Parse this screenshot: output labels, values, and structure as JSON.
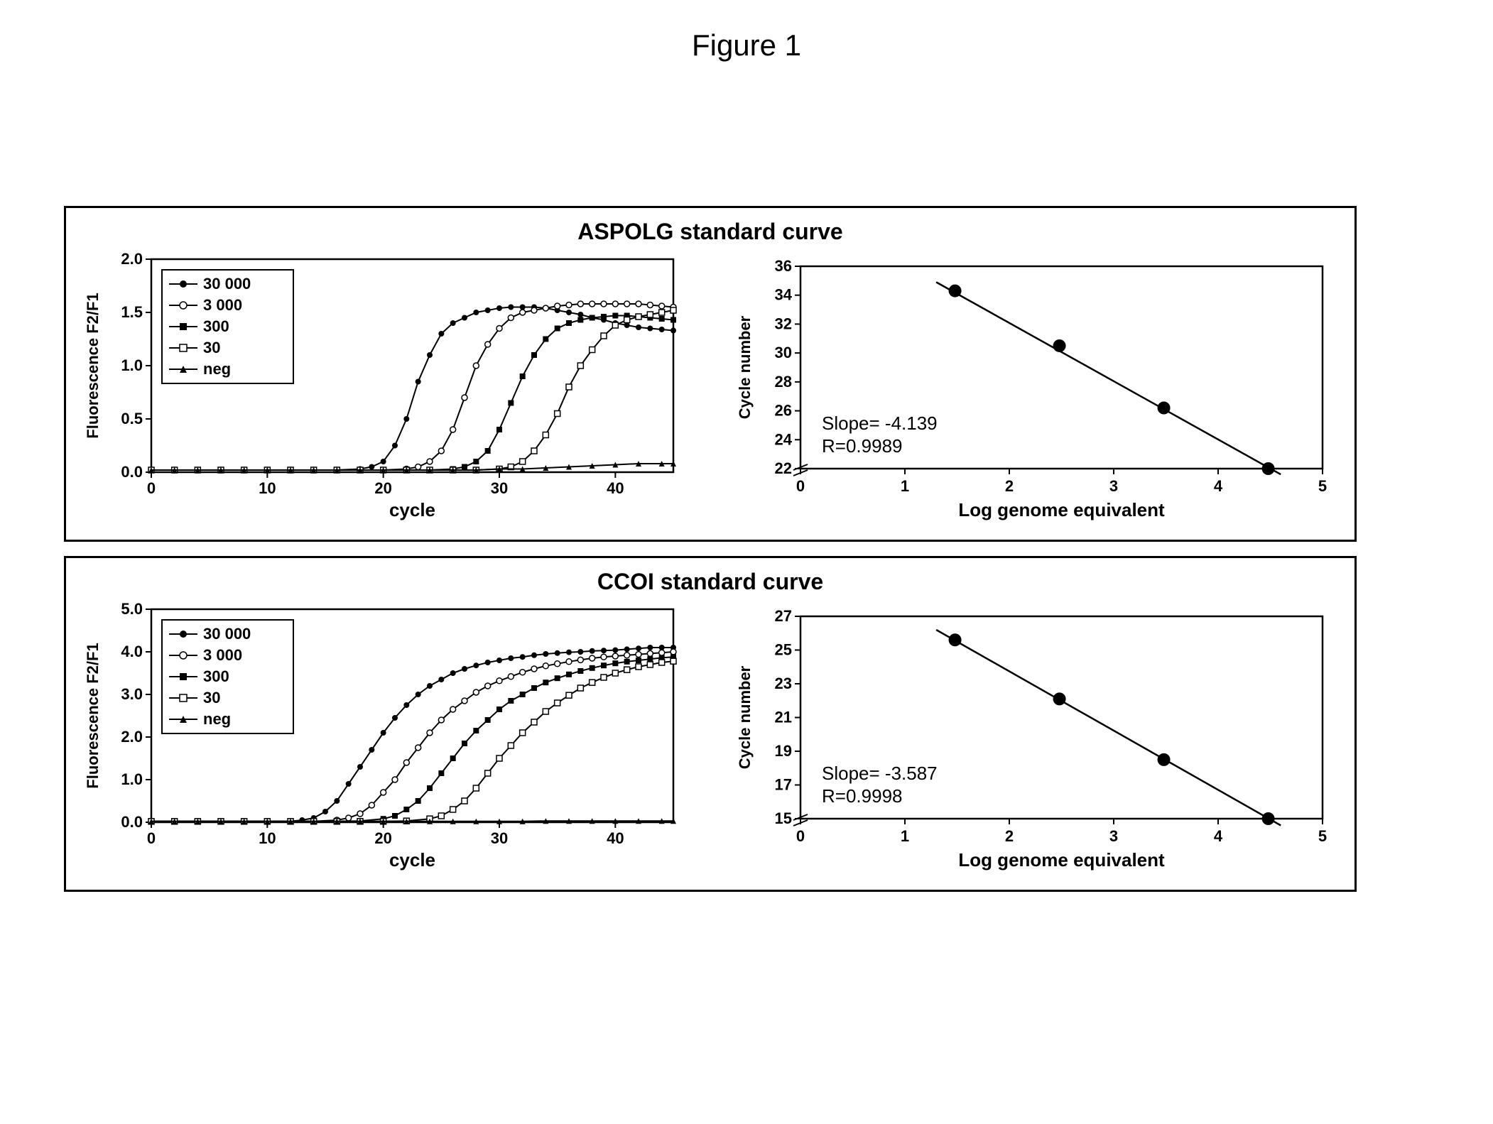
{
  "figure_title": "Figure 1",
  "colors": {
    "text": "#000000",
    "axis": "#000000",
    "panel_border": "#000000",
    "background": "#ffffff",
    "marker_filled": "#000000",
    "marker_hollow_stroke": "#000000",
    "marker_hollow_fill": "#ffffff",
    "line": "#000000"
  },
  "typography": {
    "figure_title_fontsize": 42,
    "panel_title_fontsize": 32,
    "axis_label_fontsize": 26,
    "tick_fontsize": 22,
    "legend_fontsize": 22,
    "annotation_fontsize": 26
  },
  "panels": [
    {
      "id": "aspolg",
      "title": "ASPOLG standard curve",
      "amplification": {
        "type": "line",
        "xlabel": "cycle",
        "ylabel": "Fluorescence  F2/F1",
        "xlim": [
          0,
          45
        ],
        "ylim": [
          0.0,
          2.0
        ],
        "xticks": [
          0,
          10,
          20,
          30,
          40
        ],
        "yticks": [
          0.0,
          0.5,
          1.0,
          1.5,
          2.0
        ],
        "line_width": 2,
        "marker_size": 4,
        "legend_position": "upper-left",
        "legend_box": true,
        "series": [
          {
            "label": "30 000",
            "marker": "circle-filled",
            "x": [
              0,
              2,
              4,
              6,
              8,
              10,
              12,
              14,
              16,
              18,
              19,
              20,
              21,
              22,
              23,
              24,
              25,
              26,
              27,
              28,
              29,
              30,
              31,
              32,
              33,
              34,
              35,
              36,
              37,
              38,
              39,
              40,
              41,
              42,
              43,
              44,
              45
            ],
            "y": [
              0.02,
              0.02,
              0.02,
              0.02,
              0.02,
              0.02,
              0.02,
              0.02,
              0.02,
              0.03,
              0.05,
              0.1,
              0.25,
              0.5,
              0.85,
              1.1,
              1.3,
              1.4,
              1.45,
              1.5,
              1.52,
              1.54,
              1.55,
              1.55,
              1.55,
              1.54,
              1.52,
              1.5,
              1.48,
              1.45,
              1.43,
              1.4,
              1.38,
              1.36,
              1.35,
              1.34,
              1.33
            ]
          },
          {
            "label": "3 000",
            "marker": "circle-hollow",
            "x": [
              0,
              2,
              4,
              6,
              8,
              10,
              12,
              14,
              16,
              18,
              20,
              22,
              23,
              24,
              25,
              26,
              27,
              28,
              29,
              30,
              31,
              32,
              33,
              34,
              35,
              36,
              37,
              38,
              39,
              40,
              41,
              42,
              43,
              44,
              45
            ],
            "y": [
              0.02,
              0.02,
              0.02,
              0.02,
              0.02,
              0.02,
              0.02,
              0.02,
              0.02,
              0.02,
              0.02,
              0.03,
              0.05,
              0.1,
              0.2,
              0.4,
              0.7,
              1.0,
              1.2,
              1.35,
              1.45,
              1.5,
              1.52,
              1.54,
              1.56,
              1.57,
              1.58,
              1.58,
              1.58,
              1.58,
              1.58,
              1.58,
              1.57,
              1.56,
              1.55
            ]
          },
          {
            "label": "300",
            "marker": "square-filled",
            "x": [
              0,
              2,
              4,
              6,
              8,
              10,
              12,
              14,
              16,
              18,
              20,
              22,
              24,
              26,
              27,
              28,
              29,
              30,
              31,
              32,
              33,
              34,
              35,
              36,
              37,
              38,
              39,
              40,
              41,
              42,
              43,
              44,
              45
            ],
            "y": [
              0.02,
              0.02,
              0.02,
              0.02,
              0.02,
              0.02,
              0.02,
              0.02,
              0.02,
              0.02,
              0.02,
              0.02,
              0.02,
              0.03,
              0.05,
              0.1,
              0.2,
              0.4,
              0.65,
              0.9,
              1.1,
              1.25,
              1.35,
              1.4,
              1.43,
              1.45,
              1.46,
              1.47,
              1.47,
              1.46,
              1.45,
              1.44,
              1.43
            ]
          },
          {
            "label": "30",
            "marker": "square-hollow",
            "x": [
              0,
              2,
              4,
              6,
              8,
              10,
              12,
              14,
              16,
              18,
              20,
              22,
              24,
              26,
              28,
              30,
              31,
              32,
              33,
              34,
              35,
              36,
              37,
              38,
              39,
              40,
              41,
              42,
              43,
              44,
              45
            ],
            "y": [
              0.02,
              0.02,
              0.02,
              0.02,
              0.02,
              0.02,
              0.02,
              0.02,
              0.02,
              0.02,
              0.02,
              0.02,
              0.02,
              0.02,
              0.02,
              0.03,
              0.05,
              0.1,
              0.2,
              0.35,
              0.55,
              0.8,
              1.0,
              1.15,
              1.28,
              1.38,
              1.43,
              1.46,
              1.48,
              1.5,
              1.52
            ]
          },
          {
            "label": "neg",
            "marker": "triangle-filled",
            "x": [
              0,
              2,
              4,
              6,
              8,
              10,
              12,
              14,
              16,
              18,
              20,
              22,
              24,
              26,
              28,
              30,
              32,
              34,
              36,
              38,
              40,
              42,
              44,
              45
            ],
            "y": [
              0.02,
              0.02,
              0.02,
              0.02,
              0.02,
              0.02,
              0.02,
              0.02,
              0.02,
              0.02,
              0.02,
              0.02,
              0.02,
              0.02,
              0.02,
              0.03,
              0.03,
              0.04,
              0.05,
              0.06,
              0.07,
              0.08,
              0.08,
              0.08
            ]
          }
        ]
      },
      "standard": {
        "type": "scatter-line",
        "xlabel": "Log genome equivalent",
        "ylabel": "Cycle number",
        "xlim": [
          0,
          5
        ],
        "ylim": [
          22,
          36
        ],
        "xticks": [
          0,
          1,
          2,
          3,
          4,
          5
        ],
        "yticks": [
          22,
          24,
          26,
          28,
          30,
          32,
          34,
          36
        ],
        "axis_break_y": true,
        "marker": "circle-filled",
        "marker_size": 9,
        "line_width": 2.5,
        "annotation": {
          "slope_label": "Slope= -4.139",
          "r_label": "R=0.9989"
        },
        "points_x": [
          1.48,
          2.48,
          3.48,
          4.48
        ],
        "points_y": [
          34.3,
          30.5,
          26.2,
          22.0
        ],
        "fit_x": [
          1.3,
          4.6
        ],
        "fit_y": [
          34.9,
          21.6
        ]
      }
    },
    {
      "id": "ccoi",
      "title": "CCOI standard curve",
      "amplification": {
        "type": "line",
        "xlabel": "cycle",
        "ylabel": "Fluorescence  F2/F1",
        "xlim": [
          0,
          45
        ],
        "ylim": [
          0.0,
          5.0
        ],
        "xticks": [
          0,
          10,
          20,
          30,
          40
        ],
        "yticks": [
          0.0,
          1.0,
          2.0,
          3.0,
          4.0,
          5.0
        ],
        "line_width": 2,
        "marker_size": 4,
        "legend_position": "upper-left",
        "legend_box": true,
        "series": [
          {
            "label": "30 000",
            "marker": "circle-filled",
            "x": [
              0,
              2,
              4,
              6,
              8,
              10,
              12,
              13,
              14,
              15,
              16,
              17,
              18,
              19,
              20,
              21,
              22,
              23,
              24,
              25,
              26,
              27,
              28,
              29,
              30,
              31,
              32,
              33,
              34,
              35,
              36,
              37,
              38,
              39,
              40,
              41,
              42,
              43,
              44,
              45
            ],
            "y": [
              0.02,
              0.02,
              0.02,
              0.02,
              0.02,
              0.02,
              0.02,
              0.05,
              0.1,
              0.25,
              0.5,
              0.9,
              1.3,
              1.7,
              2.1,
              2.45,
              2.75,
              3.0,
              3.2,
              3.35,
              3.5,
              3.6,
              3.68,
              3.75,
              3.8,
              3.85,
              3.88,
              3.92,
              3.95,
              3.97,
              3.99,
              4.0,
              4.02,
              4.03,
              4.04,
              4.06,
              4.08,
              4.1,
              4.1,
              4.1
            ]
          },
          {
            "label": "3 000",
            "marker": "circle-hollow",
            "x": [
              0,
              2,
              4,
              6,
              8,
              10,
              12,
              14,
              16,
              17,
              18,
              19,
              20,
              21,
              22,
              23,
              24,
              25,
              26,
              27,
              28,
              29,
              30,
              31,
              32,
              33,
              34,
              35,
              36,
              37,
              38,
              39,
              40,
              41,
              42,
              43,
              44,
              45
            ],
            "y": [
              0.02,
              0.02,
              0.02,
              0.02,
              0.02,
              0.02,
              0.02,
              0.02,
              0.05,
              0.1,
              0.2,
              0.4,
              0.7,
              1.0,
              1.4,
              1.75,
              2.1,
              2.4,
              2.65,
              2.85,
              3.05,
              3.2,
              3.32,
              3.42,
              3.52,
              3.6,
              3.67,
              3.72,
              3.77,
              3.81,
              3.85,
              3.88,
              3.9,
              3.92,
              3.94,
              3.96,
              3.98,
              4.0
            ]
          },
          {
            "label": "300",
            "marker": "square-filled",
            "x": [
              0,
              2,
              4,
              6,
              8,
              10,
              12,
              14,
              16,
              18,
              20,
              21,
              22,
              23,
              24,
              25,
              26,
              27,
              28,
              29,
              30,
              31,
              32,
              33,
              34,
              35,
              36,
              37,
              38,
              39,
              40,
              41,
              42,
              43,
              44,
              45
            ],
            "y": [
              0.02,
              0.02,
              0.02,
              0.02,
              0.02,
              0.02,
              0.02,
              0.02,
              0.02,
              0.03,
              0.08,
              0.15,
              0.3,
              0.5,
              0.8,
              1.15,
              1.5,
              1.85,
              2.15,
              2.4,
              2.65,
              2.85,
              3.0,
              3.15,
              3.28,
              3.38,
              3.47,
              3.55,
              3.62,
              3.68,
              3.73,
              3.77,
              3.8,
              3.83,
              3.86,
              3.88
            ]
          },
          {
            "label": "30",
            "marker": "square-hollow",
            "x": [
              0,
              2,
              4,
              6,
              8,
              10,
              12,
              14,
              16,
              18,
              20,
              22,
              24,
              25,
              26,
              27,
              28,
              29,
              30,
              31,
              32,
              33,
              34,
              35,
              36,
              37,
              38,
              39,
              40,
              41,
              42,
              43,
              44,
              45
            ],
            "y": [
              0.02,
              0.02,
              0.02,
              0.02,
              0.02,
              0.02,
              0.02,
              0.02,
              0.02,
              0.02,
              0.02,
              0.03,
              0.08,
              0.15,
              0.3,
              0.5,
              0.8,
              1.15,
              1.5,
              1.8,
              2.1,
              2.35,
              2.6,
              2.8,
              2.98,
              3.15,
              3.28,
              3.4,
              3.5,
              3.58,
              3.65,
              3.7,
              3.75,
              3.78
            ]
          },
          {
            "label": "neg",
            "marker": "triangle-filled",
            "x": [
              0,
              2,
              4,
              6,
              8,
              10,
              12,
              14,
              16,
              18,
              20,
              22,
              24,
              26,
              28,
              30,
              32,
              34,
              36,
              38,
              40,
              42,
              44,
              45
            ],
            "y": [
              0.02,
              0.02,
              0.02,
              0.02,
              0.02,
              0.02,
              0.02,
              0.02,
              0.02,
              0.02,
              0.02,
              0.02,
              0.02,
              0.02,
              0.02,
              0.02,
              0.02,
              0.03,
              0.03,
              0.03,
              0.03,
              0.03,
              0.03,
              0.03
            ]
          }
        ]
      },
      "standard": {
        "type": "scatter-line",
        "xlabel": "Log genome equivalent",
        "ylabel": "Cycle number",
        "xlim": [
          0,
          5
        ],
        "ylim": [
          15,
          27
        ],
        "xticks": [
          0,
          1,
          2,
          3,
          4,
          5
        ],
        "yticks": [
          15,
          17,
          19,
          21,
          23,
          25,
          27
        ],
        "axis_break_y": true,
        "marker": "circle-filled",
        "marker_size": 9,
        "line_width": 2.5,
        "annotation": {
          "slope_label": "Slope= -3.587",
          "r_label": "R=0.9998"
        },
        "points_x": [
          1.48,
          2.48,
          3.48,
          4.48
        ],
        "points_y": [
          25.6,
          22.1,
          18.5,
          15.0
        ],
        "fit_x": [
          1.3,
          4.6
        ],
        "fit_y": [
          26.2,
          14.6
        ]
      }
    }
  ]
}
